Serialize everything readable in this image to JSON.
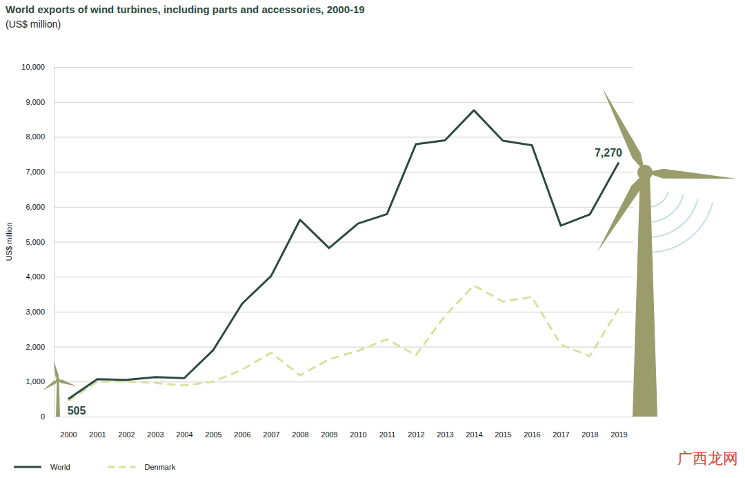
{
  "chart_data": {
    "type": "line",
    "title": "World exports of wind turbines, including parts and accessories, 2000-19",
    "subtitle": "(US$ million)",
    "y_label": "US$ million",
    "categories": [
      "2000",
      "2001",
      "2002",
      "2003",
      "2004",
      "2005",
      "2006",
      "2007",
      "2008",
      "2009",
      "2010",
      "2011",
      "2012",
      "2013",
      "2014",
      "2015",
      "2016",
      "2017",
      "2018",
      "2019"
    ],
    "series": [
      {
        "name": "World",
        "color": "#2c4a3e",
        "line_style": "solid",
        "values": [
          505,
          1070,
          1050,
          1130,
          1100,
          1900,
          3230,
          4020,
          5630,
          4820,
          5520,
          5790,
          7790,
          7900,
          8760,
          7890,
          7760,
          5460,
          5780,
          7270
        ]
      },
      {
        "name": "Denmark",
        "color": "#d8e09c",
        "line_style": "dashed",
        "values": [
          450,
          1000,
          1010,
          960,
          890,
          1000,
          1340,
          1830,
          1180,
          1640,
          1880,
          2210,
          1760,
          2880,
          3750,
          3290,
          3420,
          2060,
          1730,
          3090
        ]
      }
    ],
    "ylim": [
      0,
      10000
    ],
    "yticks": [
      0,
      {
        "value": 1000,
        "label": "1,000"
      },
      {
        "value": 2000,
        "label": "2,000"
      },
      {
        "value": 3000,
        "label": "3,000"
      },
      {
        "value": 4000,
        "label": "4,000"
      },
      {
        "value": 5000,
        "label": "5,000"
      },
      {
        "value": 6000,
        "label": "6,000"
      },
      {
        "value": 7000,
        "label": "7,000"
      },
      {
        "value": 8000,
        "label": "8,000"
      },
      {
        "value": 9000,
        "label": "9,000"
      },
      {
        "value": 10000,
        "label": "10,000"
      }
    ],
    "grid": true,
    "legend": "bottom-left",
    "annotations": [
      {
        "text": "505",
        "x": "2000",
        "y": 505
      },
      {
        "text": "7,270",
        "x": "2019",
        "y": 7270
      }
    ],
    "watermark": "广西龙网"
  }
}
